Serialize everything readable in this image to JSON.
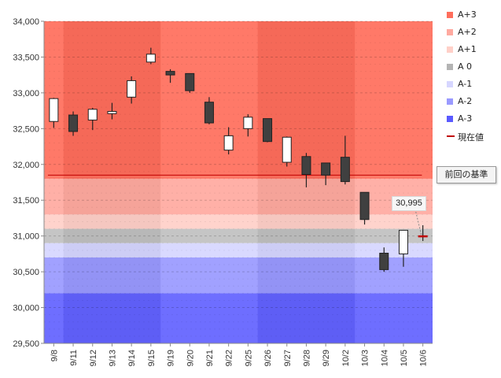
{
  "chart_data": {
    "type": "candlestick",
    "categories": [
      "9/8",
      "9/11",
      "9/12",
      "9/13",
      "9/14",
      "9/15",
      "9/19",
      "9/20",
      "9/21",
      "9/22",
      "9/25",
      "9/26",
      "9/27",
      "9/28",
      "9/29",
      "10/2",
      "10/3",
      "10/4",
      "10/5",
      "10/6"
    ],
    "ohlc": [
      {
        "open": 32600,
        "high": 32930,
        "low": 32510,
        "close": 32920
      },
      {
        "open": 32690,
        "high": 32740,
        "low": 32400,
        "close": 32460
      },
      {
        "open": 32620,
        "high": 32790,
        "low": 32480,
        "close": 32770
      },
      {
        "open": 32710,
        "high": 32860,
        "low": 32630,
        "close": 32740
      },
      {
        "open": 32940,
        "high": 33230,
        "low": 32850,
        "close": 33170
      },
      {
        "open": 33430,
        "high": 33630,
        "low": 33400,
        "close": 33540
      },
      {
        "open": 33300,
        "high": 33330,
        "low": 33140,
        "close": 33250
      },
      {
        "open": 33270,
        "high": 33270,
        "low": 33000,
        "close": 33030
      },
      {
        "open": 32870,
        "high": 32940,
        "low": 32560,
        "close": 32580
      },
      {
        "open": 32200,
        "high": 32520,
        "low": 32140,
        "close": 32400
      },
      {
        "open": 32500,
        "high": 32700,
        "low": 32390,
        "close": 32660
      },
      {
        "open": 32640,
        "high": 32640,
        "low": 32310,
        "close": 32320
      },
      {
        "open": 32030,
        "high": 32390,
        "low": 31970,
        "close": 32380
      },
      {
        "open": 32110,
        "high": 32160,
        "low": 31680,
        "close": 31860
      },
      {
        "open": 32020,
        "high": 32020,
        "low": 31710,
        "close": 31850
      },
      {
        "open": 32100,
        "high": 32400,
        "low": 31720,
        "close": 31760
      },
      {
        "open": 31610,
        "high": 31610,
        "low": 31160,
        "close": 31230
      },
      {
        "open": 30760,
        "high": 30840,
        "low": 30500,
        "close": 30530
      },
      {
        "open": 30750,
        "high": 31080,
        "low": 30570,
        "close": 31080
      },
      {
        "open": 30995,
        "high": 31150,
        "low": 30930,
        "close": 30995
      }
    ],
    "ylim": [
      29500,
      34000
    ],
    "yticks": [
      29500,
      30000,
      30500,
      31000,
      31500,
      32000,
      32500,
      33000,
      33500,
      34000
    ],
    "ytick_labels": [
      "29,500",
      "30,000",
      "30,500",
      "31,000",
      "31,500",
      "32,000",
      "32,500",
      "33,000",
      "33,500",
      "34,000"
    ],
    "reference_line": {
      "value": 31850,
      "color": "#c00000"
    },
    "current_price": {
      "value": 30995,
      "label": "30,995",
      "color": "#c00000"
    },
    "zones": [
      {
        "name": "A+3",
        "from": 31800,
        "to": 34000,
        "color": "#ff6e5c"
      },
      {
        "name": "A+2",
        "from": 31300,
        "to": 31800,
        "color": "#ffaaa0"
      },
      {
        "name": "A+1",
        "from": 31100,
        "to": 31300,
        "color": "#ffd0c8"
      },
      {
        "name": "A 0",
        "from": 30900,
        "to": 31100,
        "color": "#c0c0c0"
      },
      {
        "name": "A-1",
        "from": 30700,
        "to": 30900,
        "color": "#d6d6ff"
      },
      {
        "name": "A-2",
        "from": 30200,
        "to": 30700,
        "color": "#9a9aff"
      },
      {
        "name": "A-3",
        "from": 29500,
        "to": 30200,
        "color": "#6262ff"
      }
    ],
    "legend_position": "right",
    "grid": true
  },
  "legend": {
    "items": [
      {
        "label": "A+3",
        "color": "#ff6e5c"
      },
      {
        "label": "A+2",
        "color": "#ffaaa0"
      },
      {
        "label": "A+1",
        "color": "#ffd0c8"
      },
      {
        "label": "A 0",
        "color": "#b4b4b4"
      },
      {
        "label": "A-1",
        "color": "#d6d6ff"
      },
      {
        "label": "A-2",
        "color": "#9a9aff"
      },
      {
        "label": "A-3",
        "color": "#5a5aff"
      }
    ],
    "current_label": "現在値"
  },
  "annotations": {
    "prev_base": "前回の基準",
    "callout": "30,995"
  },
  "colors": {
    "up_body": "#ffffff",
    "down_body": "#404040",
    "wick": "#222222",
    "axis_text": "#333333"
  }
}
